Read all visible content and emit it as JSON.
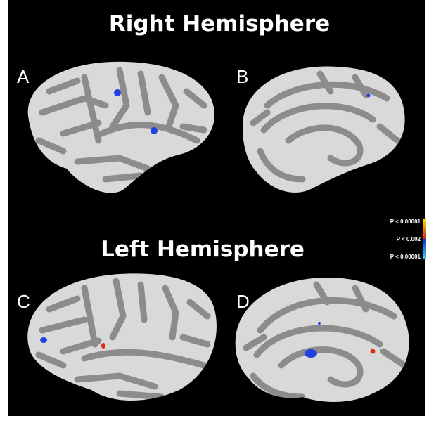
{
  "titles": {
    "right": "Right Hemisphere",
    "left": "Left Hemisphere"
  },
  "panels": [
    {
      "label": "A"
    },
    {
      "label": "B"
    },
    {
      "label": "C"
    },
    {
      "label": "D"
    }
  ],
  "colorbar": {
    "labels": [
      "P < 0.00001",
      "P < 0.002",
      "P < 0.00001"
    ]
  }
}
